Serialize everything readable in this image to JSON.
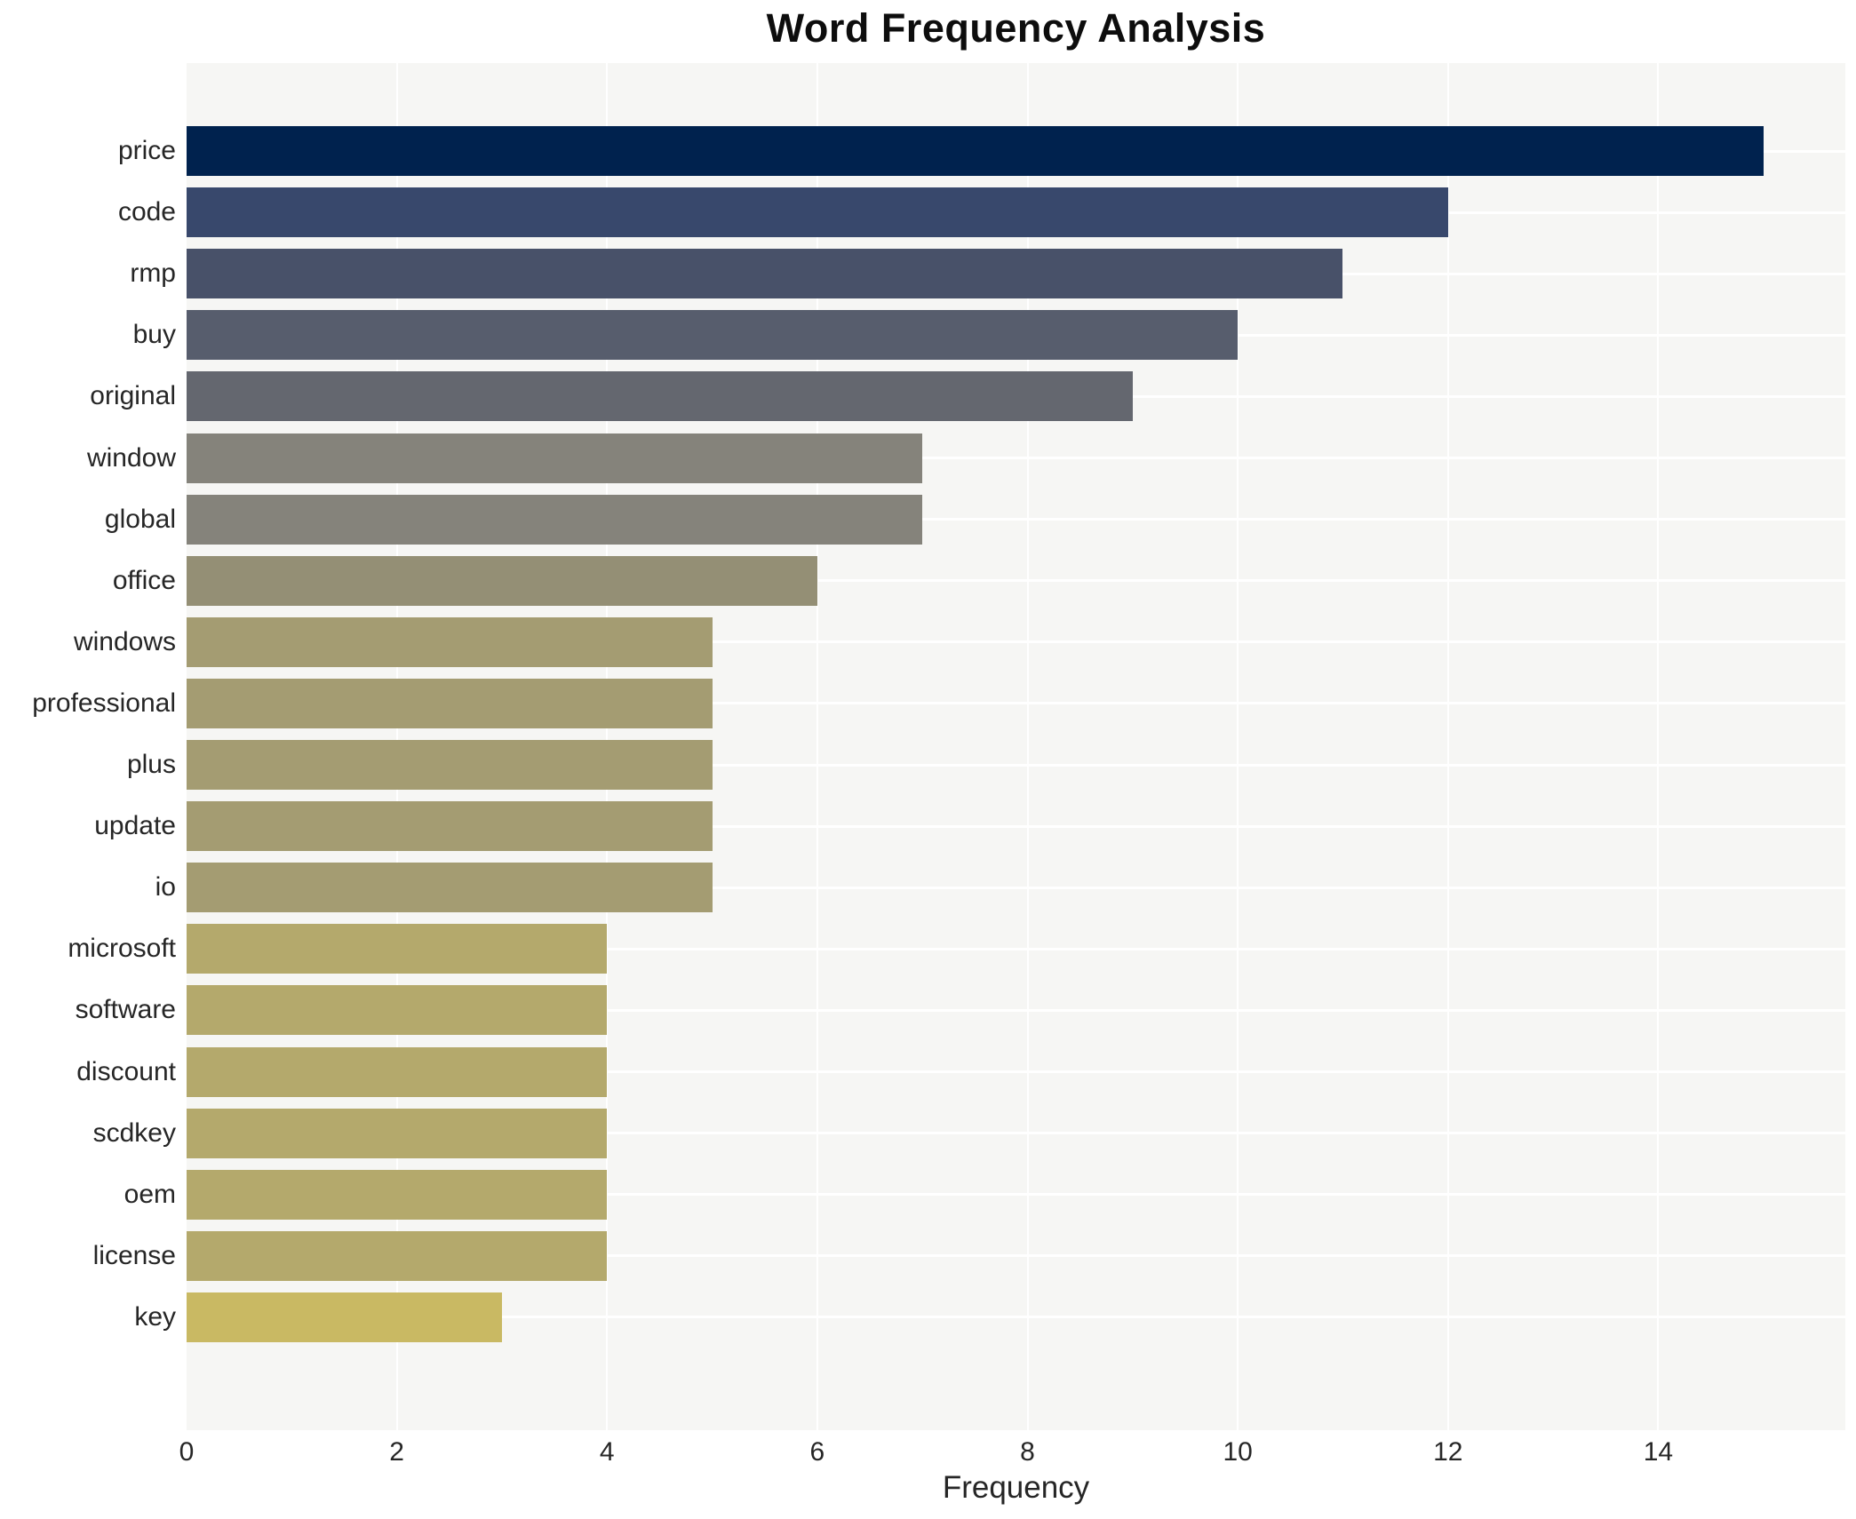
{
  "chart_data": {
    "type": "bar",
    "orientation": "horizontal",
    "title": "Word Frequency Analysis",
    "xlabel": "Frequency",
    "ylabel": "",
    "categories": [
      "price",
      "code",
      "rmp",
      "buy",
      "original",
      "window",
      "global",
      "office",
      "windows",
      "professional",
      "plus",
      "update",
      "io",
      "microsoft",
      "software",
      "discount",
      "scdkey",
      "oem",
      "license",
      "key"
    ],
    "values": [
      15,
      12,
      11,
      10,
      9,
      7,
      7,
      6,
      5,
      5,
      5,
      5,
      5,
      4,
      4,
      4,
      4,
      4,
      4,
      3
    ],
    "bar_colors": [
      "#00224e",
      "#38486c",
      "#485169",
      "#575d6d",
      "#64676f",
      "#85837b",
      "#85837b",
      "#948f75",
      "#a49c72",
      "#a49c72",
      "#a49c72",
      "#a49c72",
      "#a49c72",
      "#b4a96c",
      "#b4a96c",
      "#b4a96c",
      "#b4a96c",
      "#b4a96c",
      "#b4a96c",
      "#c9b963"
    ],
    "xticks": [
      0,
      2,
      4,
      6,
      8,
      10,
      12,
      14
    ],
    "xlim": [
      0,
      15.78
    ],
    "grid": true,
    "legend": false,
    "colors": {
      "plot_background": "#f6f6f4",
      "gridline": "#ffffff",
      "figure_background": "#ffffff",
      "title_text": "#0d0d0d",
      "tick_text": "#262626"
    }
  }
}
